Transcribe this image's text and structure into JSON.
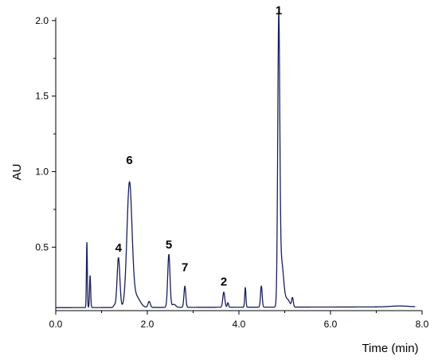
{
  "chart_data": {
    "type": "line",
    "title": "",
    "xlabel": "Time (min)",
    "ylabel": "AU",
    "xlim": [
      0.0,
      8.0
    ],
    "ylim": [
      0.08,
      2.02
    ],
    "x_ticks": [
      {
        "value": 0.0,
        "label": "0.0"
      },
      {
        "value": 2.0,
        "label": "2.0"
      },
      {
        "value": 4.0,
        "label": "4.0"
      },
      {
        "value": 6.0,
        "label": "6.0"
      },
      {
        "value": 8.0,
        "label": "8.0"
      }
    ],
    "y_ticks": [
      {
        "value": 0.5,
        "label": "0.5"
      },
      {
        "value": 1.0,
        "label": "1.0"
      },
      {
        "value": 1.5,
        "label": "1.5"
      },
      {
        "value": 2.0,
        "label": "2.0"
      }
    ],
    "grid": false,
    "line_color": "#1a1f5a",
    "series": [
      {
        "baseline": 0.1,
        "baseline_end": 0.105,
        "peaks": [
          {
            "t": 0.68,
            "h": 0.43,
            "w": 0.01
          },
          {
            "t": 0.75,
            "h": 0.21,
            "w": 0.012
          },
          {
            "t": 1.28,
            "h": 0.015,
            "w": 0.02
          },
          {
            "t": 1.37,
            "h": 0.33,
            "w": 0.03
          },
          {
            "t": 1.61,
            "h": 0.82,
            "w": 0.055
          },
          {
            "t": 1.76,
            "h": 0.07,
            "w": 0.08
          },
          {
            "t": 2.04,
            "h": 0.04,
            "w": 0.025
          },
          {
            "t": 2.47,
            "h": 0.35,
            "w": 0.025
          },
          {
            "t": 2.58,
            "h": 0.02,
            "w": 0.04
          },
          {
            "t": 2.82,
            "h": 0.14,
            "w": 0.02
          },
          {
            "t": 3.67,
            "h": 0.1,
            "w": 0.022
          },
          {
            "t": 3.76,
            "h": 0.03,
            "w": 0.015
          },
          {
            "t": 4.14,
            "h": 0.13,
            "w": 0.013
          },
          {
            "t": 4.49,
            "h": 0.14,
            "w": 0.018
          },
          {
            "t": 4.87,
            "h": 1.83,
            "w": 0.022
          },
          {
            "t": 4.93,
            "h": 0.3,
            "w": 0.045
          },
          {
            "t": 5.06,
            "h": 0.05,
            "w": 0.05
          },
          {
            "t": 5.17,
            "h": 0.06,
            "w": 0.018
          },
          {
            "t": 7.5,
            "h": 0.006,
            "w": 0.2
          }
        ]
      }
    ],
    "peak_labels": [
      {
        "text": "1",
        "t": 4.87,
        "y": 2.04
      },
      {
        "text": "2",
        "t": 3.67,
        "y": 0.245
      },
      {
        "text": "4",
        "t": 1.37,
        "y": 0.47
      },
      {
        "text": "5",
        "t": 2.47,
        "y": 0.49
      },
      {
        "text": "6",
        "t": 1.61,
        "y": 1.05
      },
      {
        "text": "7",
        "t": 2.82,
        "y": 0.34
      }
    ]
  }
}
